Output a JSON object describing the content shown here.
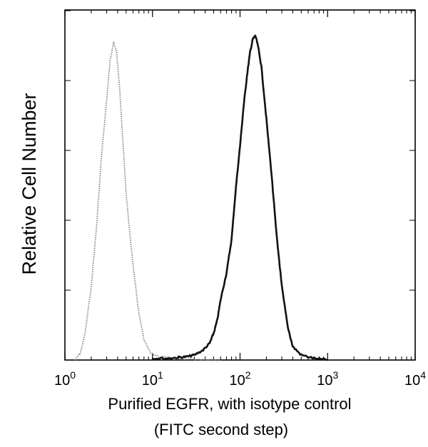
{
  "chart_data": {
    "type": "line",
    "title": "",
    "xlabel": "Purified EGFR, with isotype control",
    "xlabel_line2": "(FITC second step)",
    "ylabel": "Relative Cell Number",
    "x_scale": "log",
    "xlim": [
      1,
      10000
    ],
    "ylim": [
      0,
      100
    ],
    "x_ticks": [
      {
        "value": 1,
        "base": "10",
        "exp": "0"
      },
      {
        "value": 10,
        "base": "10",
        "exp": "1"
      },
      {
        "value": 100,
        "base": "10",
        "exp": "2"
      },
      {
        "value": 1000,
        "base": "10",
        "exp": "3"
      },
      {
        "value": 10000,
        "base": "10",
        "exp": "4"
      }
    ],
    "y_ticks_labeled": false,
    "grid": false,
    "legend": "none",
    "series": [
      {
        "style": "dotted",
        "color": "#888888",
        "x": [
          1.3,
          1.5,
          1.7,
          2.0,
          2.3,
          2.6,
          3.0,
          3.3,
          3.6,
          3.9,
          4.2,
          4.6,
          5.0,
          5.5,
          6.2,
          7.0,
          8.0,
          9.5,
          12,
          16,
          25,
          40,
          60
        ],
        "y": [
          0,
          2,
          8,
          22,
          40,
          60,
          78,
          90,
          95,
          92,
          82,
          65,
          50,
          38,
          25,
          14,
          6,
          2,
          1,
          0.6,
          0.3,
          0.2,
          0
        ]
      },
      {
        "style": "solid",
        "color": "#111111",
        "x": [
          10,
          15,
          20,
          25,
          30,
          38,
          45,
          50,
          55,
          60,
          70,
          80,
          90,
          100,
          110,
          120,
          130,
          140,
          150,
          160,
          175,
          200,
          230,
          260,
          300,
          350,
          400,
          500,
          700,
          1000
        ],
        "y": [
          0.5,
          0.5,
          0.8,
          1.0,
          1.5,
          3,
          5,
          8,
          12,
          18,
          26,
          36,
          52,
          64,
          76,
          85,
          92,
          96,
          97,
          94,
          88,
          72,
          55,
          38,
          22,
          10,
          4,
          1.5,
          0.5,
          0
        ]
      }
    ]
  }
}
